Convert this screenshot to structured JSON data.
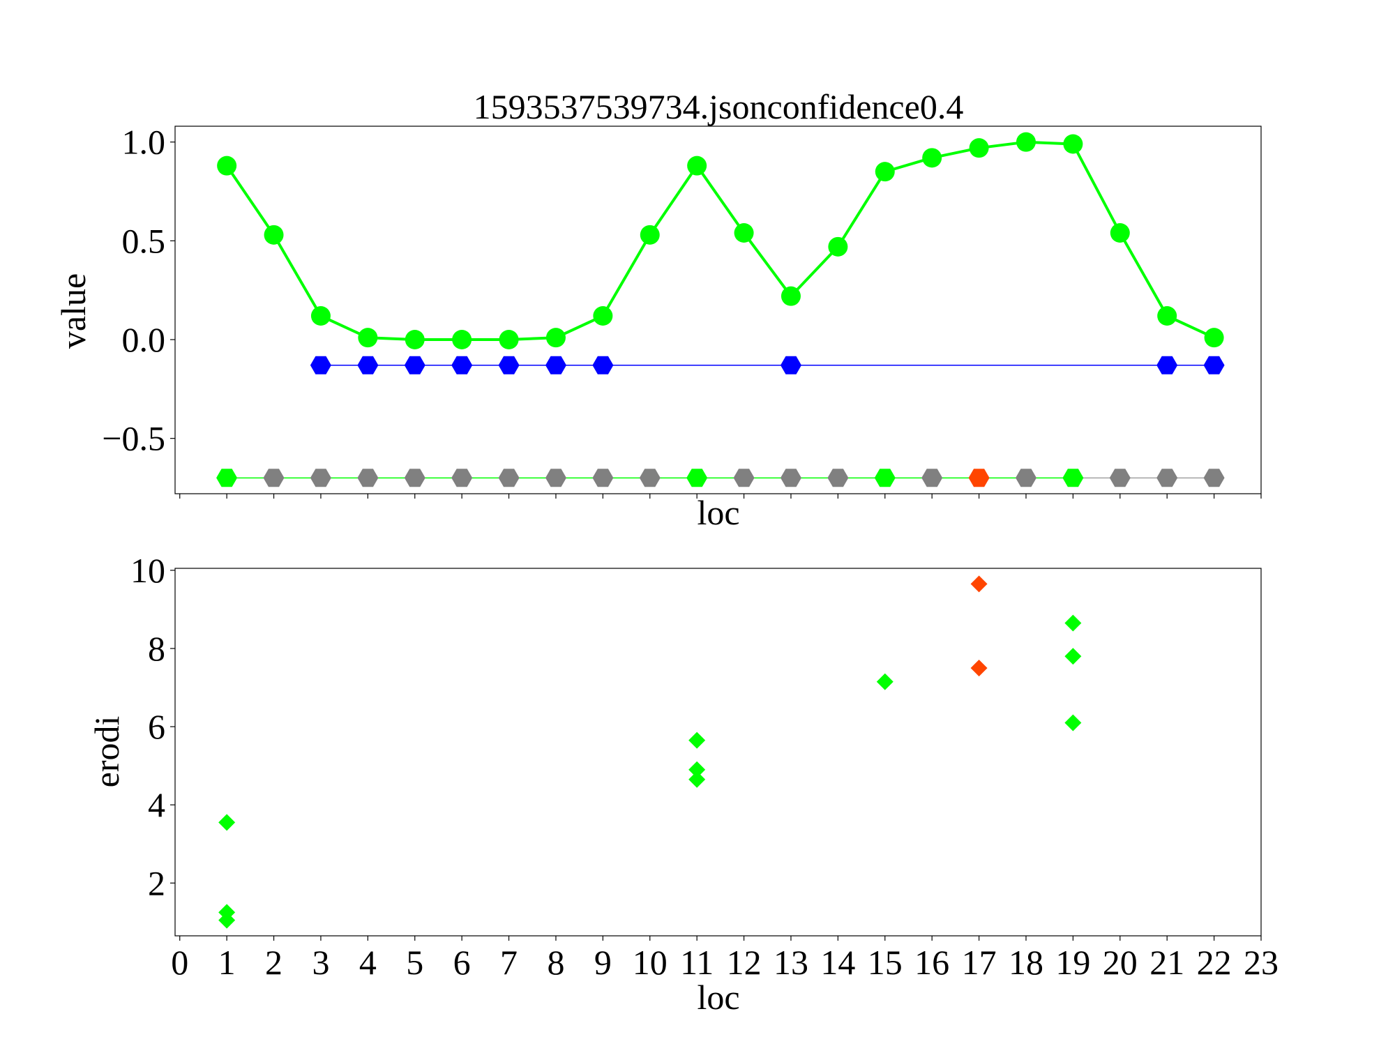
{
  "chart_data": [
    {
      "type": "line",
      "title": "1593537539734.jsonconfidence0.4",
      "xlabel": "loc",
      "ylabel": "value",
      "xlim": [
        -0.1,
        23
      ],
      "ylim": [
        -0.78,
        1.08
      ],
      "yticks": [
        1.0,
        0.5,
        0.0,
        -0.5
      ],
      "ytick_labels": [
        "1.0",
        "0.5",
        "0.0",
        "−0.5"
      ],
      "xticks": [
        0,
        1,
        2,
        3,
        4,
        5,
        6,
        7,
        8,
        9,
        10,
        11,
        12,
        13,
        14,
        15,
        16,
        17,
        18,
        19,
        20,
        21,
        22,
        23
      ],
      "show_xtick_labels": false,
      "grid": false,
      "series": [
        {
          "color": "#00ff00",
          "marker": "circle",
          "points": [
            [
              1,
              0.88
            ],
            [
              2,
              0.53
            ],
            [
              3,
              0.12
            ],
            [
              4,
              0.01
            ],
            [
              5,
              0.0
            ],
            [
              6,
              0.0
            ],
            [
              7,
              0.0
            ],
            [
              8,
              0.01
            ],
            [
              9,
              0.12
            ],
            [
              10,
              0.53
            ],
            [
              11,
              0.88
            ],
            [
              12,
              0.54
            ],
            [
              13,
              0.22
            ],
            [
              14,
              0.47
            ],
            [
              15,
              0.85
            ],
            [
              16,
              0.92
            ],
            [
              17,
              0.97
            ],
            [
              18,
              1.0
            ],
            [
              19,
              0.99
            ],
            [
              20,
              0.54
            ],
            [
              21,
              0.12
            ],
            [
              22,
              0.01
            ]
          ]
        },
        {
          "color": "#0000ff",
          "marker": "hexagon",
          "points": [
            [
              3,
              -0.13
            ],
            [
              4,
              -0.13
            ],
            [
              5,
              -0.13
            ],
            [
              6,
              -0.13
            ],
            [
              7,
              -0.13
            ],
            [
              8,
              -0.13
            ],
            [
              9,
              -0.13
            ],
            [
              13,
              -0.13
            ],
            [
              21,
              -0.13
            ],
            [
              22,
              -0.13
            ]
          ]
        },
        {
          "marker": "hexagon",
          "points": [
            {
              "x": 1,
              "y": -0.7,
              "color": "#00ff00"
            },
            {
              "x": 2,
              "y": -0.7,
              "color": "#808080"
            },
            {
              "x": 3,
              "y": -0.7,
              "color": "#808080"
            },
            {
              "x": 4,
              "y": -0.7,
              "color": "#808080"
            },
            {
              "x": 5,
              "y": -0.7,
              "color": "#808080"
            },
            {
              "x": 6,
              "y": -0.7,
              "color": "#808080"
            },
            {
              "x": 7,
              "y": -0.7,
              "color": "#808080"
            },
            {
              "x": 8,
              "y": -0.7,
              "color": "#808080"
            },
            {
              "x": 9,
              "y": -0.7,
              "color": "#808080"
            },
            {
              "x": 10,
              "y": -0.7,
              "color": "#808080"
            },
            {
              "x": 11,
              "y": -0.7,
              "color": "#00ff00"
            },
            {
              "x": 12,
              "y": -0.7,
              "color": "#808080"
            },
            {
              "x": 13,
              "y": -0.7,
              "color": "#808080"
            },
            {
              "x": 14,
              "y": -0.7,
              "color": "#808080"
            },
            {
              "x": 15,
              "y": -0.7,
              "color": "#00ff00"
            },
            {
              "x": 16,
              "y": -0.7,
              "color": "#808080"
            },
            {
              "x": 17,
              "y": -0.7,
              "color": "#ff4500"
            },
            {
              "x": 18,
              "y": -0.7,
              "color": "#808080"
            },
            {
              "x": 19,
              "y": -0.7,
              "color": "#00ff00"
            },
            {
              "x": 20,
              "y": -0.7,
              "color": "#808080"
            },
            {
              "x": 21,
              "y": -0.7,
              "color": "#808080"
            },
            {
              "x": 22,
              "y": -0.7,
              "color": "#808080"
            }
          ],
          "segment_colors": [
            "#00ff00",
            "#00ff00",
            "#00ff00",
            "#00ff00",
            "#00ff00",
            "#00ff00",
            "#00ff00",
            "#00ff00",
            "#00ff00",
            "#00ff00",
            "#00ff00",
            "#00ff00",
            "#00ff00",
            "#00ff00",
            "#00ff00",
            "#00ff00",
            "#00ff00",
            "#00ff00",
            "#a0a0a0",
            "#a0a0a0",
            "#a0a0a0"
          ]
        }
      ]
    },
    {
      "type": "scatter",
      "xlabel": "loc",
      "ylabel": "erodi",
      "xlim": [
        -0.1,
        23
      ],
      "ylim": [
        0.65,
        10.05
      ],
      "yticks": [
        2,
        4,
        6,
        8,
        10
      ],
      "ytick_labels": [
        "2",
        "4",
        "6",
        "8",
        "10"
      ],
      "xticks": [
        0,
        1,
        2,
        3,
        4,
        5,
        6,
        7,
        8,
        9,
        10,
        11,
        12,
        13,
        14,
        15,
        16,
        17,
        18,
        19,
        20,
        21,
        22,
        23
      ],
      "xtick_labels": [
        "0",
        "1",
        "2",
        "3",
        "4",
        "5",
        "6",
        "7",
        "8",
        "9",
        "10",
        "11",
        "12",
        "13",
        "14",
        "15",
        "16",
        "17",
        "18",
        "19",
        "20",
        "21",
        "22",
        "23"
      ],
      "grid": false,
      "marker": "diamond",
      "points": [
        {
          "x": 1,
          "y": 3.55,
          "color": "#00ff00"
        },
        {
          "x": 1,
          "y": 1.25,
          "color": "#00ff00"
        },
        {
          "x": 1,
          "y": 1.05,
          "color": "#00ff00"
        },
        {
          "x": 11,
          "y": 5.65,
          "color": "#00ff00"
        },
        {
          "x": 11,
          "y": 4.9,
          "color": "#00ff00"
        },
        {
          "x": 11,
          "y": 4.65,
          "color": "#00ff00"
        },
        {
          "x": 15,
          "y": 7.15,
          "color": "#00ff00"
        },
        {
          "x": 17,
          "y": 9.65,
          "color": "#ff4500"
        },
        {
          "x": 17,
          "y": 7.5,
          "color": "#ff4500"
        },
        {
          "x": 19,
          "y": 8.65,
          "color": "#00ff00"
        },
        {
          "x": 19,
          "y": 7.8,
          "color": "#00ff00"
        },
        {
          "x": 19,
          "y": 6.1,
          "color": "#00ff00"
        }
      ]
    }
  ]
}
